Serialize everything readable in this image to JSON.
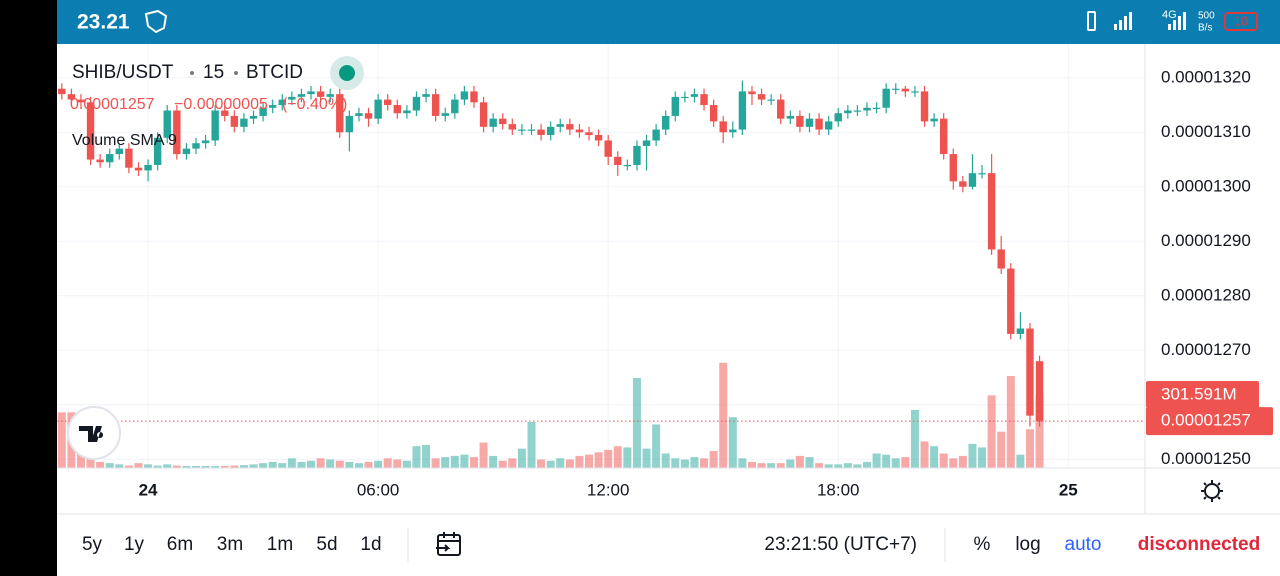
{
  "status_bar": {
    "time": "23.21",
    "network": "4G",
    "speed": "500",
    "speed_unit": "B/s",
    "battery": "10"
  },
  "chart_data": {
    "type": "candlestick",
    "symbol": "SHIB/USDT",
    "interval": "15",
    "exchange": "BTCID",
    "change": "−0.00000005",
    "change_percent": "(−0.40%)",
    "indicator": "Volume SMA 9",
    "up_color": "#26a69a",
    "down_color": "#ef5350",
    "grid": true,
    "xlim": [
      -0.5,
      113
    ],
    "xticks": [
      {
        "value": 9,
        "label": "24"
      },
      {
        "value": 33,
        "label": "06:00"
      },
      {
        "value": 57,
        "label": "12:00"
      },
      {
        "value": 81,
        "label": "18:00"
      },
      {
        "value": 105,
        "label": "25"
      }
    ],
    "ylim": [
      1.2484e-05,
      1.3262e-05
    ],
    "yticks": [
      {
        "value": 1.25e-05,
        "label": "0.00001250"
      },
      {
        "value": 1.26e-05,
        "label": "0.00001260"
      },
      {
        "value": 1.27e-05,
        "label": "0.00001270"
      },
      {
        "value": 1.28e-05,
        "label": "0.00001280"
      },
      {
        "value": 1.29e-05,
        "label": "0.00001290"
      },
      {
        "value": 1.3e-05,
        "label": "0.00001300"
      },
      {
        "value": 1.31e-05,
        "label": "0.00001310"
      },
      {
        "value": 1.32e-05,
        "label": "0.00001320"
      }
    ],
    "open": [
      1.318e-05,
      1.317e-05,
      1.316e-05,
      1.3155e-05,
      1.305e-05,
      1.3045e-05,
      1.306e-05,
      1.307e-05,
      1.3035e-05,
      1.303e-05,
      1.304e-05,
      1.309e-05,
      1.314e-05,
      1.306e-05,
      1.307e-05,
      1.308e-05,
      1.3085e-05,
      1.314e-05,
      1.313e-05,
      1.311e-05,
      1.3125e-05,
      1.313e-05,
      1.3145e-05,
      1.315e-05,
      1.316e-05,
      1.3165e-05,
      1.317e-05,
      1.3175e-05,
      1.3165e-05,
      1.317e-05,
      1.31e-05,
      1.313e-05,
      1.3135e-05,
      1.3125e-05,
      1.316e-05,
      1.315e-05,
      1.3135e-05,
      1.314e-05,
      1.3165e-05,
      1.317e-05,
      1.313e-05,
      1.3135e-05,
      1.316e-05,
      1.3175e-05,
      1.3155e-05,
      1.311e-05,
      1.3125e-05,
      1.3115e-05,
      1.3105e-05,
      1.3105e-05,
      1.3105e-05,
      1.3095e-05,
      1.311e-05,
      1.3115e-05,
      1.3105e-05,
      1.31e-05,
      1.3095e-05,
      1.3085e-05,
      1.3055e-05,
      1.304e-05,
      1.304e-05,
      1.3075e-05,
      1.3085e-05,
      1.3105e-05,
      1.313e-05,
      1.3165e-05,
      1.3165e-05,
      1.317e-05,
      1.315e-05,
      1.312e-05,
      1.31e-05,
      1.3105e-05,
      1.3175e-05,
      1.317e-05,
      1.316e-05,
      1.316e-05,
      1.3125e-05,
      1.313e-05,
      1.311e-05,
      1.3125e-05,
      1.3105e-05,
      1.312e-05,
      1.3135e-05,
      1.314e-05,
      1.314e-05,
      1.3145e-05,
      1.3145e-05,
      1.318e-05,
      1.318e-05,
      1.3175e-05,
      1.3175e-05,
      1.312e-05,
      1.3125e-05,
      1.306e-05,
      1.301e-05,
      1.3e-05,
      1.3025e-05,
      1.3025e-05,
      1.2885e-05,
      1.285e-05,
      1.273e-05,
      1.274e-05,
      1.268e-05
    ],
    "high": [
      1.319e-05,
      1.318e-05,
      1.317e-05,
      1.3165e-05,
      1.306e-05,
      1.307e-05,
      1.308e-05,
      1.308e-05,
      1.3045e-05,
      1.305e-05,
      1.31e-05,
      1.315e-05,
      1.315e-05,
      1.308e-05,
      1.309e-05,
      1.3095e-05,
      1.315e-05,
      1.315e-05,
      1.314e-05,
      1.3135e-05,
      1.314e-05,
      1.3155e-05,
      1.316e-05,
      1.317e-05,
      1.3175e-05,
      1.318e-05,
      1.3185e-05,
      1.3185e-05,
      1.318e-05,
      1.318e-05,
      1.314e-05,
      1.3145e-05,
      1.3145e-05,
      1.317e-05,
      1.317e-05,
      1.316e-05,
      1.315e-05,
      1.3175e-05,
      1.318e-05,
      1.318e-05,
      1.3145e-05,
      1.317e-05,
      1.3185e-05,
      1.3185e-05,
      1.3165e-05,
      1.3135e-05,
      1.3135e-05,
      1.3125e-05,
      1.3115e-05,
      1.3115e-05,
      1.3115e-05,
      1.312e-05,
      1.3125e-05,
      1.3125e-05,
      1.3115e-05,
      1.311e-05,
      1.3105e-05,
      1.3095e-05,
      1.3065e-05,
      1.305e-05,
      1.3085e-05,
      1.3095e-05,
      1.3115e-05,
      1.314e-05,
      1.3175e-05,
      1.3175e-05,
      1.318e-05,
      1.318e-05,
      1.316e-05,
      1.313e-05,
      1.312e-05,
      1.3195e-05,
      1.3185e-05,
      1.318e-05,
      1.317e-05,
      1.317e-05,
      1.314e-05,
      1.314e-05,
      1.3135e-05,
      1.3135e-05,
      1.313e-05,
      1.3145e-05,
      1.315e-05,
      1.315e-05,
      1.3155e-05,
      1.3155e-05,
      1.319e-05,
      1.319e-05,
      1.3185e-05,
      1.3185e-05,
      1.3185e-05,
      1.3135e-05,
      1.3135e-05,
      1.307e-05,
      1.302e-05,
      1.306e-05,
      1.304e-05,
      1.306e-05,
      1.291e-05,
      1.286e-05,
      1.277e-05,
      1.275e-05,
      1.269e-05
    ],
    "low": [
      1.316e-05,
      1.315e-05,
      1.3145e-05,
      1.304e-05,
      1.3035e-05,
      1.3035e-05,
      1.305e-05,
      1.3025e-05,
      1.302e-05,
      1.301e-05,
      1.303e-05,
      1.308e-05,
      1.305e-05,
      1.305e-05,
      1.306e-05,
      1.307e-05,
      1.3075e-05,
      1.312e-05,
      1.31e-05,
      1.31e-05,
      1.3115e-05,
      1.312e-05,
      1.3135e-05,
      1.314e-05,
      1.315e-05,
      1.3155e-05,
      1.316e-05,
      1.3155e-05,
      1.3155e-05,
      1.309e-05,
      1.3065e-05,
      1.312e-05,
      1.311e-05,
      1.3115e-05,
      1.314e-05,
      1.3125e-05,
      1.3125e-05,
      1.313e-05,
      1.3155e-05,
      1.312e-05,
      1.312e-05,
      1.3125e-05,
      1.315e-05,
      1.3145e-05,
      1.31e-05,
      1.31e-05,
      1.3105e-05,
      1.3095e-05,
      1.3095e-05,
      1.3095e-05,
      1.3085e-05,
      1.3085e-05,
      1.31e-05,
      1.3095e-05,
      1.309e-05,
      1.3085e-05,
      1.3075e-05,
      1.304e-05,
      1.302e-05,
      1.303e-05,
      1.303e-05,
      1.303e-05,
      1.3075e-05,
      1.3095e-05,
      1.312e-05,
      1.3155e-05,
      1.3155e-05,
      1.314e-05,
      1.311e-05,
      1.308e-05,
      1.309e-05,
      1.3095e-05,
      1.315e-05,
      1.315e-05,
      1.315e-05,
      1.3115e-05,
      1.3115e-05,
      1.31e-05,
      1.31e-05,
      1.3095e-05,
      1.3095e-05,
      1.311e-05,
      1.3125e-05,
      1.313e-05,
      1.313e-05,
      1.3135e-05,
      1.3135e-05,
      1.317e-05,
      1.3165e-05,
      1.3165e-05,
      1.311e-05,
      1.311e-05,
      1.305e-05,
      1.2995e-05,
      1.299e-05,
      1.2995e-05,
      1.3015e-05,
      1.2875e-05,
      1.284e-05,
      1.272e-05,
      1.272e-05,
      1.256e-05,
      1.256e-05
    ],
    "close": [
      1.317e-05,
      1.316e-05,
      1.3155e-05,
      1.305e-05,
      1.3045e-05,
      1.306e-05,
      1.307e-05,
      1.3035e-05,
      1.303e-05,
      1.304e-05,
      1.309e-05,
      1.314e-05,
      1.306e-05,
      1.307e-05,
      1.308e-05,
      1.3085e-05,
      1.314e-05,
      1.313e-05,
      1.311e-05,
      1.3125e-05,
      1.313e-05,
      1.3145e-05,
      1.315e-05,
      1.316e-05,
      1.3165e-05,
      1.317e-05,
      1.3175e-05,
      1.3165e-05,
      1.317e-05,
      1.31e-05,
      1.313e-05,
      1.3135e-05,
      1.3125e-05,
      1.316e-05,
      1.315e-05,
      1.3135e-05,
      1.314e-05,
      1.3165e-05,
      1.317e-05,
      1.313e-05,
      1.3135e-05,
      1.316e-05,
      1.3175e-05,
      1.3155e-05,
      1.311e-05,
      1.3125e-05,
      1.3115e-05,
      1.3105e-05,
      1.3105e-05,
      1.3105e-05,
      1.3095e-05,
      1.311e-05,
      1.3115e-05,
      1.3105e-05,
      1.31e-05,
      1.3095e-05,
      1.3085e-05,
      1.3055e-05,
      1.304e-05,
      1.304e-05,
      1.3075e-05,
      1.3085e-05,
      1.3105e-05,
      1.313e-05,
      1.3165e-05,
      1.3165e-05,
      1.317e-05,
      1.315e-05,
      1.312e-05,
      1.31e-05,
      1.3105e-05,
      1.3175e-05,
      1.317e-05,
      1.316e-05,
      1.316e-05,
      1.3125e-05,
      1.313e-05,
      1.311e-05,
      1.3125e-05,
      1.3105e-05,
      1.312e-05,
      1.3135e-05,
      1.314e-05,
      1.314e-05,
      1.3145e-05,
      1.3145e-05,
      1.318e-05,
      1.318e-05,
      1.3175e-05,
      1.3175e-05,
      1.312e-05,
      1.3125e-05,
      1.306e-05,
      1.301e-05,
      1.3e-05,
      1.3025e-05,
      1.3025e-05,
      1.2885e-05,
      1.285e-05,
      1.273e-05,
      1.274e-05,
      1.258e-05,
      1.257e-05
    ],
    "volume": [
      230,
      230,
      120,
      60,
      25,
      20,
      15,
      10,
      20,
      15,
      10,
      15,
      10,
      8,
      8,
      8,
      8,
      8,
      10,
      12,
      15,
      20,
      25,
      20,
      40,
      25,
      30,
      40,
      35,
      30,
      25,
      20,
      25,
      30,
      40,
      35,
      30,
      90,
      95,
      40,
      45,
      50,
      55,
      45,
      105,
      50,
      30,
      40,
      80,
      190,
      35,
      30,
      40,
      35,
      50,
      55,
      65,
      75,
      90,
      85,
      372,
      80,
      180,
      60,
      40,
      35,
      45,
      40,
      70,
      435,
      210,
      40,
      25,
      20,
      20,
      20,
      35,
      50,
      45,
      20,
      15,
      15,
      20,
      15,
      25,
      60,
      55,
      40,
      45,
      240,
      110,
      90,
      60,
      40,
      50,
      100,
      85,
      300,
      150,
      380,
      55,
      160,
      301.591
    ],
    "last_volume_label": "301.591M"
  },
  "toolbar": {
    "ranges": [
      "5y",
      "1y",
      "6m",
      "3m",
      "1m",
      "5d",
      "1d"
    ],
    "clock": "23:21:50 (UTC+7)",
    "percent": "%",
    "log": "log",
    "auto": "auto",
    "status": "disconnected"
  }
}
